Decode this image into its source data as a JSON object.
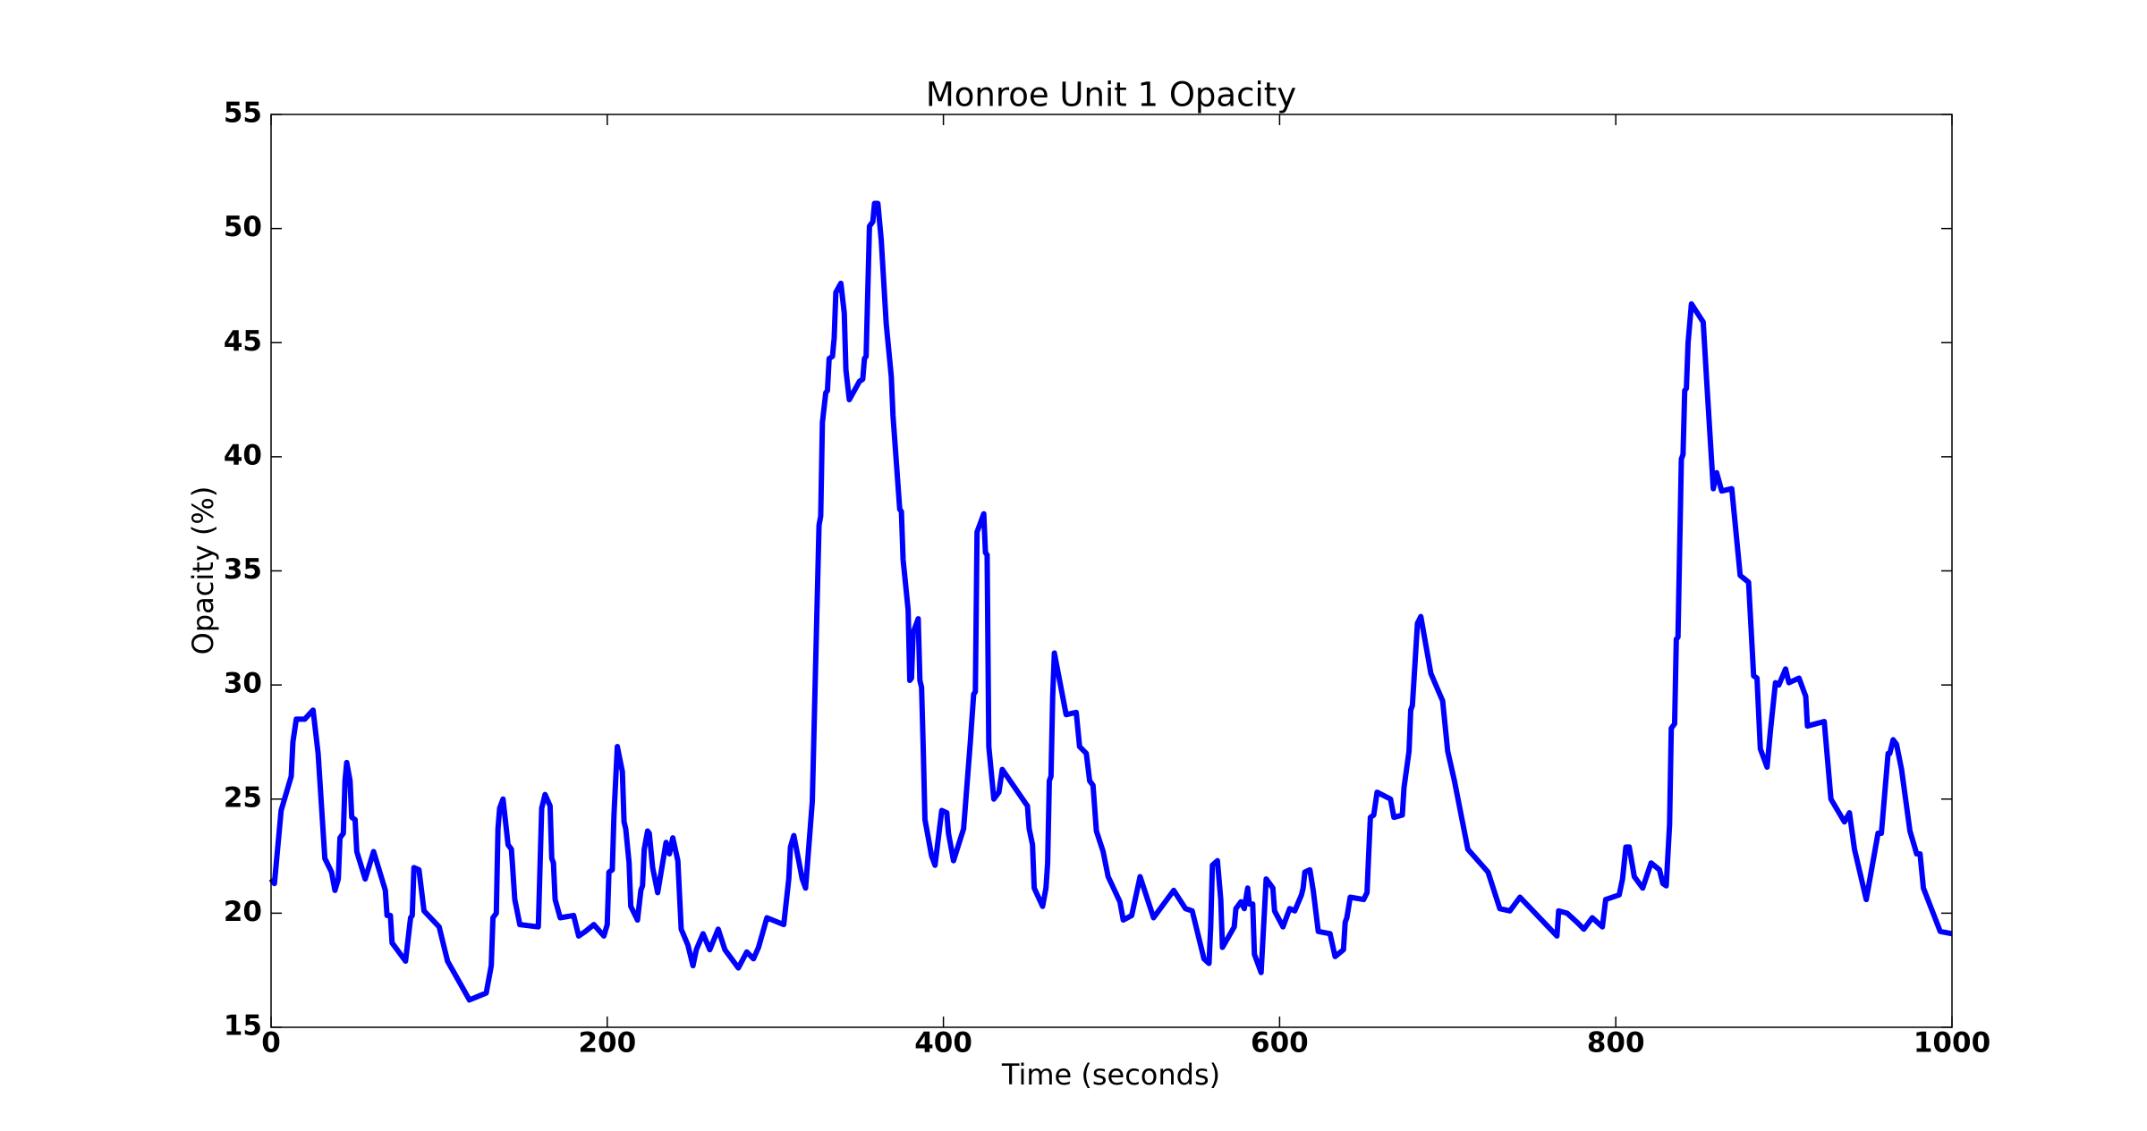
{
  "chart_data": {
    "type": "line",
    "title": "Monroe Unit 1 Opacity",
    "x_label": "Time (seconds)",
    "y_label": "Opacity (%)",
    "x": [
      0,
      2,
      6,
      12,
      13,
      15,
      20,
      25,
      28,
      32,
      36,
      38,
      40,
      41,
      43,
      44,
      45,
      47,
      48,
      50,
      51,
      56,
      61,
      68,
      69,
      71,
      72,
      80,
      83,
      84,
      85,
      88,
      91,
      100,
      105,
      118,
      128,
      131,
      132,
      134,
      135,
      136,
      138,
      141,
      143,
      145,
      148,
      159,
      161,
      163,
      166,
      167,
      168,
      169,
      172,
      180,
      183,
      187,
      192,
      198,
      200,
      201,
      203,
      204,
      206,
      209,
      210,
      211,
      213,
      214,
      218,
      220,
      221,
      222,
      224,
      225,
      227,
      230,
      235,
      237,
      239,
      242,
      244,
      248,
      251,
      253,
      257,
      261,
      266,
      270,
      278,
      283,
      287,
      290,
      295,
      305,
      308,
      309,
      311,
      316,
      318,
      322,
      324,
      326,
      327,
      328,
      330,
      331,
      332,
      334,
      335,
      336,
      339,
      341,
      342,
      344,
      350,
      352,
      353,
      354,
      356,
      358,
      359,
      361,
      363,
      366,
      369,
      370,
      374,
      375,
      376,
      379,
      380,
      381,
      382,
      385,
      386,
      387,
      388,
      389,
      390,
      393,
      395,
      399,
      402,
      403,
      406,
      412,
      416,
      418,
      419,
      420,
      421,
      424,
      425,
      426,
      427,
      430,
      433,
      435,
      449,
      450,
      451,
      453,
      454,
      459,
      461,
      462,
      463,
      464,
      465,
      466,
      473,
      479,
      481,
      485,
      487,
      489,
      491,
      495,
      498,
      505,
      507,
      512,
      517,
      525,
      532,
      537,
      544,
      548,
      555,
      558,
      559,
      560,
      563,
      565,
      566,
      573,
      574,
      577,
      579,
      581,
      582,
      584,
      585,
      589,
      592,
      596,
      597,
      602,
      606,
      609,
      613,
      614,
      615,
      618,
      620,
      623,
      630,
      633,
      638,
      639,
      640,
      642,
      650,
      652,
      653,
      654,
      656,
      658,
      666,
      668,
      673,
      674,
      677,
      678,
      679,
      681,
      682,
      684,
      690,
      697,
      700,
      704,
      712,
      724,
      731,
      737,
      743,
      765,
      766,
      771,
      777,
      781,
      786,
      792,
      794,
      802,
      804,
      806,
      808,
      811,
      816,
      821,
      826,
      828,
      830,
      832,
      833,
      835,
      836,
      837,
      839,
      840,
      841,
      842,
      843,
      845,
      852,
      854,
      857,
      858,
      860,
      863,
      869,
      874,
      879,
      882,
      884,
      886,
      890,
      892,
      895,
      897,
      901,
      903,
      909,
      913,
      914,
      924,
      928,
      936,
      939,
      942,
      949,
      956,
      958,
      962,
      963,
      965,
      967,
      970,
      975,
      979,
      981,
      983,
      993,
      1000
    ],
    "series": [
      {
        "name": "Opacity",
        "color": "#0000ff",
        "values": [
          21.5,
          21.3,
          24.5,
          26,
          27.5,
          28.5,
          28.5,
          28.9,
          27,
          22.4,
          21.8,
          21,
          21.5,
          23.3,
          23.5,
          25.8,
          26.6,
          25.8,
          24.2,
          24.1,
          22.7,
          21.5,
          22.7,
          21,
          19.9,
          19.9,
          18.7,
          17.9,
          19.8,
          19.9,
          22,
          21.9,
          20.1,
          19.4,
          17.9,
          16.2,
          16.5,
          17.7,
          19.8,
          20,
          23.7,
          24.6,
          25,
          23,
          22.8,
          20.6,
          19.5,
          19.4,
          24.6,
          25.2,
          24.7,
          22.4,
          22.2,
          20.6,
          19.8,
          19.9,
          19,
          19.2,
          19.5,
          19,
          19.5,
          21.8,
          21.9,
          24.3,
          27.3,
          26.2,
          24,
          23.7,
          22.2,
          20.3,
          19.7,
          21,
          21.2,
          22.8,
          23.6,
          23.5,
          22,
          20.9,
          23.1,
          22.6,
          23.3,
          22.3,
          19.3,
          18.6,
          17.7,
          18.4,
          19.1,
          18.4,
          19.3,
          18.4,
          17.6,
          18.3,
          18,
          18.5,
          19.8,
          19.5,
          21.5,
          22.9,
          23.4,
          21.5,
          21.1,
          24.9,
          31,
          37,
          37.4,
          41.5,
          42.8,
          42.9,
          44.3,
          44.4,
          45.2,
          47.2,
          47.6,
          46.3,
          43.8,
          42.5,
          43.3,
          43.4,
          44.3,
          44.4,
          50.1,
          50.3,
          51.1,
          51.1,
          49.5,
          45.8,
          43.5,
          41.8,
          37.7,
          37.6,
          35.5,
          33.3,
          30.2,
          30.3,
          32.3,
          32.9,
          30.2,
          29.9,
          27.2,
          24.1,
          23.7,
          22.5,
          22.1,
          24.5,
          24.4,
          23.5,
          22.3,
          23.7,
          27.5,
          29.6,
          29.7,
          36.7,
          36.9,
          37.5,
          35.8,
          35.7,
          27.3,
          25,
          25.3,
          26.3,
          24.8,
          24.7,
          23.7,
          23,
          21.1,
          20.3,
          21.1,
          22.2,
          25.8,
          26,
          29.5,
          31.4,
          28.7,
          28.8,
          27.3,
          27,
          25.8,
          25.6,
          23.6,
          22.7,
          21.6,
          20.5,
          19.7,
          19.9,
          21.6,
          19.8,
          20.5,
          21,
          20.2,
          20.1,
          18,
          17.8,
          19.4,
          22.1,
          22.3,
          20.6,
          18.5,
          19.4,
          20.2,
          20.5,
          20.2,
          21.1,
          20.4,
          20.4,
          18.2,
          17.4,
          21.5,
          21.1,
          20.1,
          19.4,
          20.2,
          20.1,
          20.8,
          21.1,
          21.8,
          21.9,
          21,
          19.2,
          19.1,
          18.1,
          18.4,
          19.6,
          19.8,
          20.7,
          20.6,
          20.9,
          22.6,
          24.2,
          24.3,
          25.3,
          25,
          24.2,
          24.3,
          25.5,
          27.1,
          28.9,
          29.1,
          31.5,
          32.7,
          33,
          30.5,
          29.3,
          27.1,
          25.8,
          22.8,
          21.8,
          20.2,
          20.1,
          20.7,
          19,
          20.1,
          20,
          19.6,
          19.3,
          19.8,
          19.4,
          20.6,
          20.8,
          21.5,
          22.9,
          22.9,
          21.6,
          21.1,
          22.2,
          21.9,
          21.3,
          21.2,
          23.9,
          28.1,
          28.3,
          32,
          32.1,
          39.9,
          40.1,
          42.9,
          43,
          45,
          46.7,
          45.9,
          43.4,
          39.8,
          38.6,
          39.3,
          38.5,
          38.6,
          34.8,
          34.5,
          30.4,
          30.3,
          27.2,
          26.4,
          28,
          30.1,
          30,
          30.7,
          30.1,
          30.3,
          29.5,
          28.2,
          28.4,
          25,
          24,
          24.4,
          22.8,
          20.6,
          23.5,
          23.5,
          27,
          27,
          27.6,
          27.4,
          26.3,
          23.6,
          22.6,
          22.6,
          21.1,
          19.2,
          19.1
        ]
      }
    ],
    "xlim": [
      0,
      1000
    ],
    "xticks": [
      0,
      200,
      400,
      600,
      800,
      1000
    ],
    "ylim": [
      15,
      55
    ],
    "yticks": [
      15,
      20,
      25,
      30,
      35,
      40,
      45,
      50,
      55
    ],
    "grid": false
  }
}
